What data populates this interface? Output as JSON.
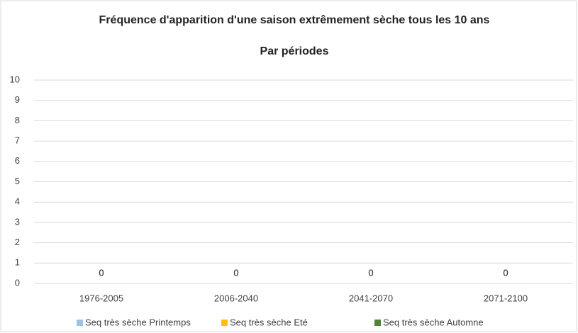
{
  "chart_data": {
    "type": "bar",
    "title": "Fréquence d'apparition d'une saison extrêmement sèche tous les 10 ans",
    "subtitle": "Par périodes",
    "categories": [
      "1976-2005",
      "2006-2040",
      "2041-2070",
      "2071-2100"
    ],
    "series": [
      {
        "name": "Seq très sèche Printemps",
        "color": "#9dc3e6",
        "values": [
          0,
          0,
          0,
          0
        ]
      },
      {
        "name": "Seq très sèche Eté",
        "color": "#ffc000",
        "values": [
          0,
          0,
          0,
          0
        ]
      },
      {
        "name": "Seq très sèche Automne",
        "color": "#548235",
        "values": [
          0,
          0,
          0,
          0
        ]
      }
    ],
    "ylim": [
      0,
      10
    ],
    "yticks": [
      0,
      1,
      2,
      3,
      4,
      5,
      6,
      7,
      8,
      9,
      10
    ],
    "grid": true,
    "legend": "bottom"
  }
}
